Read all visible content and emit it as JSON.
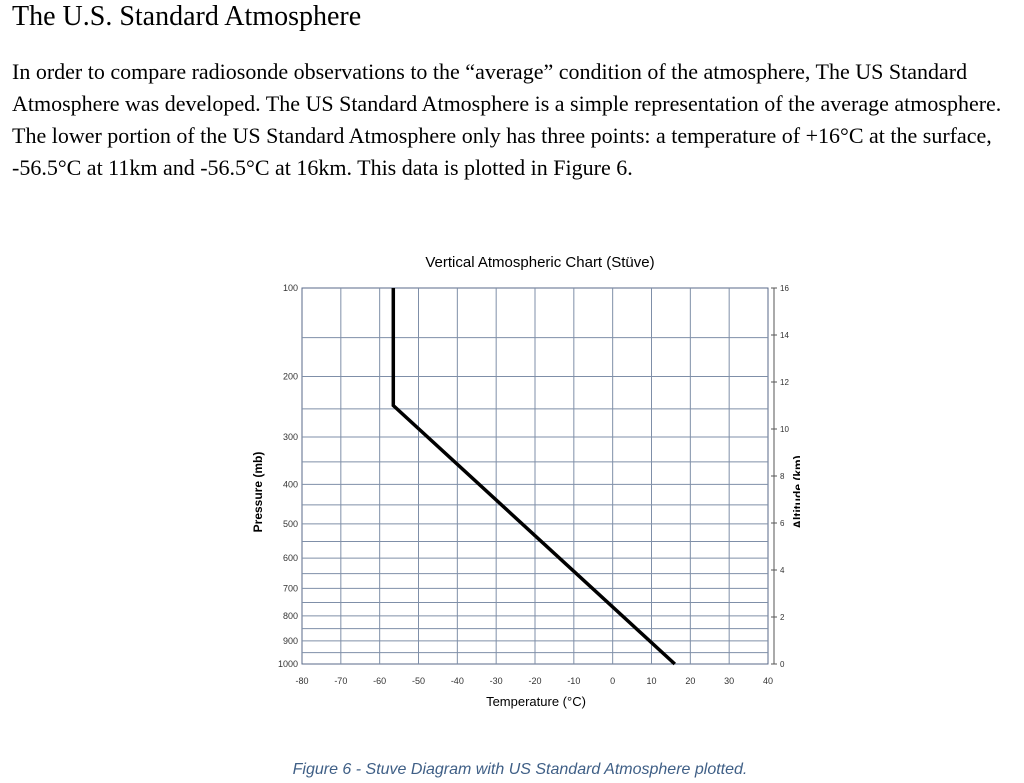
{
  "doc": {
    "title": "The U.S. Standard Atmosphere",
    "paragraph": "In order to compare radiosonde observations to the “average” condition of the atmosphere, The US Standard Atmosphere was developed. The US Standard Atmosphere is a simple representation of the average atmosphere. The lower portion of the US Standard Atmosphere only has three points: a temperature of +16°C at the surface, -56.5°C at 11km and -56.5°C at 16km. This data is plotted in Figure 6.",
    "caption": "Figure 6 - Stuve Diagram with US Standard Atmosphere plotted."
  },
  "chart_data": {
    "type": "line",
    "title": "Vertical Atmospheric Chart (Stüve)",
    "xlabel": "Temperature (°C)",
    "ylabel": "Pressure (mb)",
    "y2label": "Altitude (km)",
    "xlim": [
      -80,
      40
    ],
    "ylim_pressure": [
      1000,
      100
    ],
    "ylim_altitude": [
      0,
      16
    ],
    "x_ticks": [
      "-80",
      "-70",
      "-60",
      "-50",
      "-40",
      "-30",
      "-20",
      "-10",
      "0",
      "10",
      "20",
      "30",
      "40"
    ],
    "pressure_ticks": [
      "100",
      "200",
      "300",
      "400",
      "500",
      "600",
      "700",
      "800",
      "900",
      "1000"
    ],
    "altitude_ticks": [
      "0",
      "2",
      "4",
      "6",
      "8",
      "10",
      "12",
      "14",
      "16"
    ],
    "grid": true,
    "series": [
      {
        "altitude_km": [
          0,
          11,
          16
        ],
        "temperature_c": [
          16,
          -56.5,
          -56.5
        ]
      }
    ]
  }
}
